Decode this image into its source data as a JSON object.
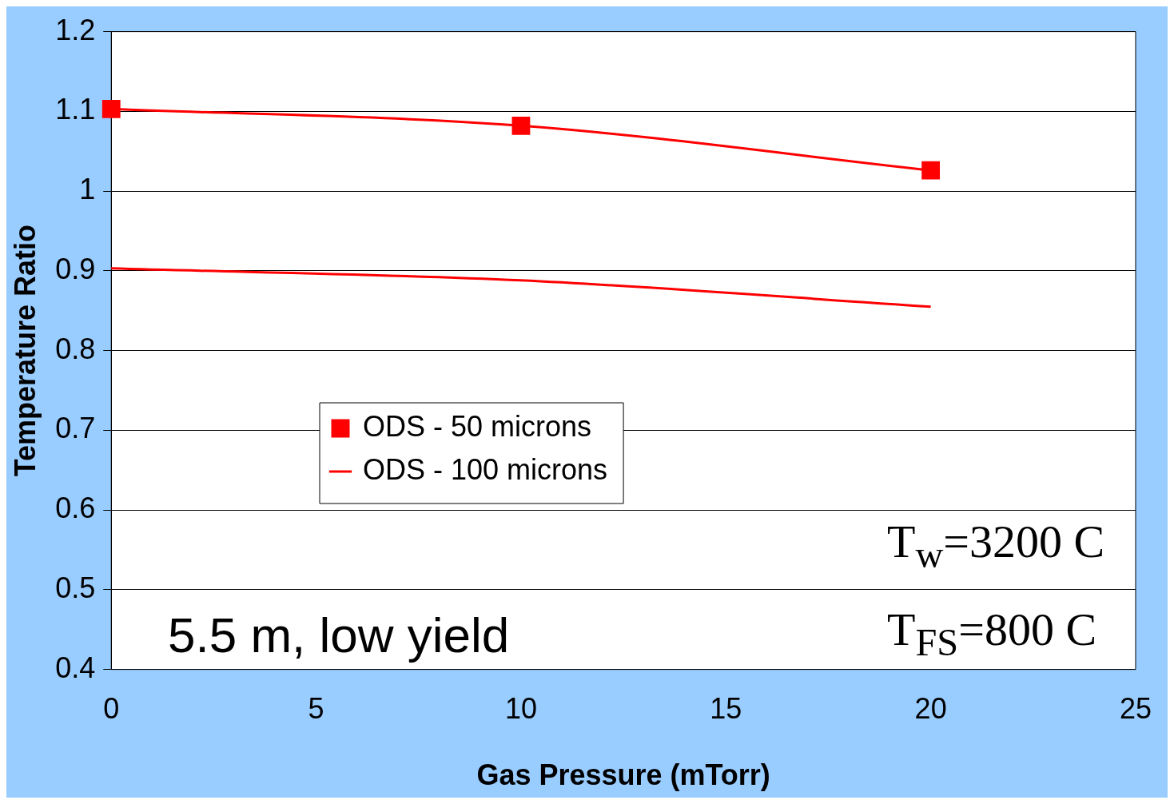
{
  "chart_data": {
    "type": "line",
    "xlabel": "Gas Pressure (mTorr)",
    "ylabel": "Temperature Ratio",
    "x": [
      0,
      10,
      20
    ],
    "series": [
      {
        "name": "ODS - 50 microns",
        "color": "#ff0000",
        "values": [
          1.103,
          1.082,
          1.026
        ],
        "marker": "square"
      },
      {
        "name": "ODS - 100 microns",
        "color": "#ff0000",
        "values": [
          0.903,
          0.888,
          0.855
        ],
        "marker": "none"
      }
    ],
    "xlim": [
      0,
      25
    ],
    "xticks": [
      0,
      5,
      10,
      15,
      20,
      25
    ],
    "ylim": [
      0.4,
      1.2
    ],
    "yticks": [
      0.4,
      0.5,
      0.6,
      0.7,
      0.8,
      0.9,
      1,
      1.1,
      1.2
    ],
    "grid": "y",
    "legend": "left",
    "annotations": [
      "5.5 m, low yield",
      "T$_{w}$=3200 C",
      "T$_{FS}$=800 C"
    ]
  }
}
